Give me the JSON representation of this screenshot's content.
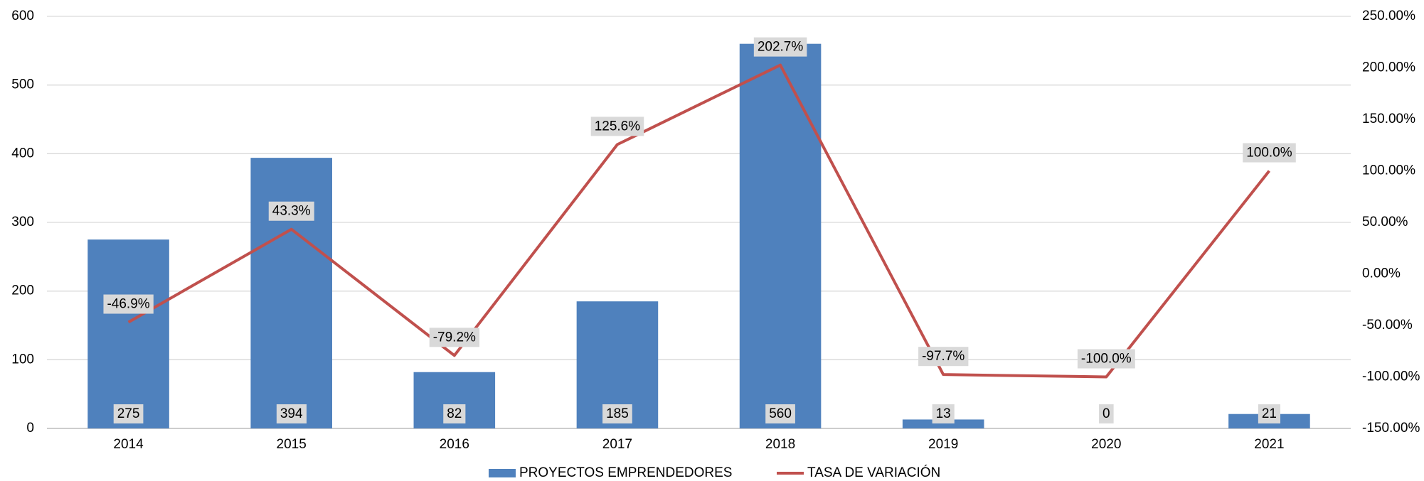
{
  "chart_data": {
    "type": "bar_line",
    "categories": [
      "2014",
      "2015",
      "2016",
      "2017",
      "2018",
      "2019",
      "2020",
      "2021"
    ],
    "series": [
      {
        "name": "PROYECTOS EMPRENDEDORES",
        "type": "bar",
        "color": "#4f81bd",
        "values": [
          275,
          394,
          82,
          185,
          560,
          13,
          0,
          21
        ]
      },
      {
        "name": "TASA DE VARIACIÓN",
        "type": "line",
        "axis": "y2",
        "color": "#c0504d",
        "values": [
          -46.9,
          43.3,
          -79.2,
          125.6,
          202.7,
          -97.7,
          -100.0,
          100.0
        ],
        "value_labels": [
          "-46.9%",
          "43.3%",
          "-79.2%",
          "125.6%",
          "202.7%",
          "-97.7%",
          "-100.0%",
          "100.0%"
        ]
      }
    ],
    "ylim": [
      0,
      600
    ],
    "yticks": [
      0,
      100,
      200,
      300,
      400,
      500,
      600
    ],
    "y2lim": [
      -150,
      250
    ],
    "y2ticks": [
      {
        "value": -150,
        "label": "-150.00%"
      },
      {
        "value": -100,
        "label": "-100.00%"
      },
      {
        "value": -50,
        "label": "-50.00%"
      },
      {
        "value": 0,
        "label": "0.00%"
      },
      {
        "value": 50,
        "label": "50.00%"
      },
      {
        "value": 100,
        "label": "100.00%"
      },
      {
        "value": 150,
        "label": "150.00%"
      },
      {
        "value": 200,
        "label": "200.00%"
      },
      {
        "value": 250,
        "label": "250.00%"
      }
    ],
    "grid": true,
    "legend": "bottom"
  }
}
